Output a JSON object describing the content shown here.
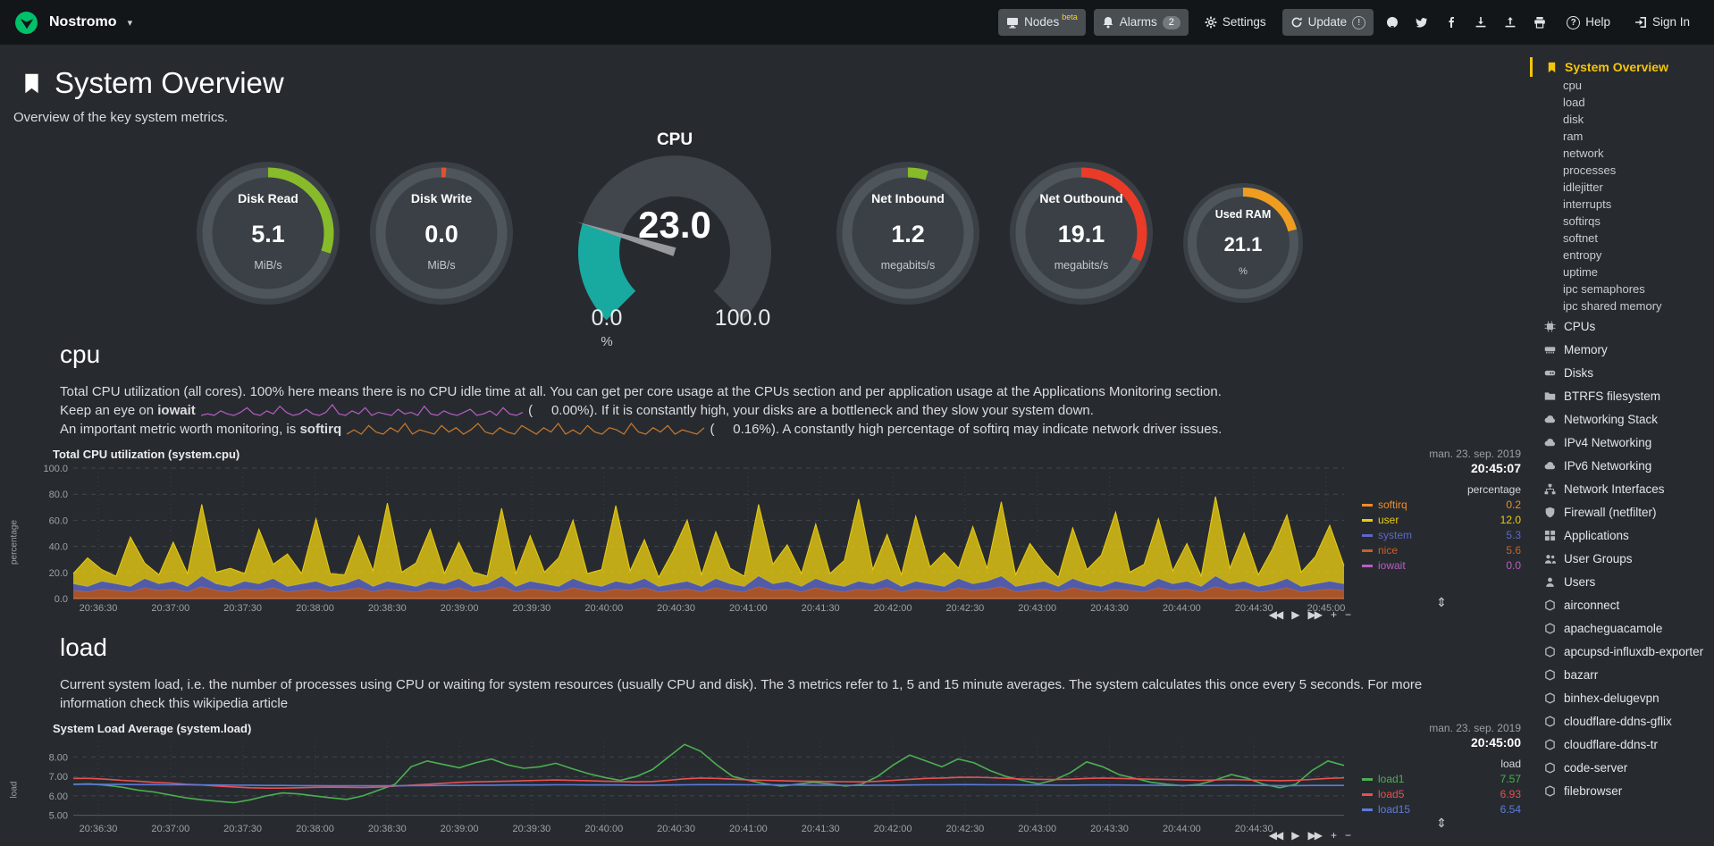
{
  "colors": {
    "accent": "#F5C40C",
    "bg": "#272b30",
    "navbar": "#131619"
  },
  "topbar": {
    "host": "Nostromo",
    "items": [
      {
        "name": "nodes-button",
        "icon": "monitor",
        "label": "Nodes",
        "sup": "beta",
        "pill": true
      },
      {
        "name": "alarms-button",
        "icon": "bell",
        "label": "Alarms",
        "badge": "2",
        "badge_style": "pill",
        "pill": true
      },
      {
        "name": "settings-button",
        "icon": "gear",
        "label": "Settings",
        "pill": false
      },
      {
        "name": "update-button",
        "icon": "update",
        "label": "Update",
        "badge": "!",
        "badge_style": "circle",
        "pill": true
      },
      {
        "name": "github-button",
        "icon": "github"
      },
      {
        "name": "twitter-button",
        "icon": "twitter"
      },
      {
        "name": "facebook-button",
        "icon": "facebook"
      },
      {
        "name": "import-snapshot-button",
        "icon": "download"
      },
      {
        "name": "export-snapshot-button",
        "icon": "upload"
      },
      {
        "name": "print-button",
        "icon": "print"
      },
      {
        "name": "help-button",
        "icon": "help",
        "label": "Help"
      },
      {
        "name": "signin-button",
        "icon": "signin",
        "label": "Sign In"
      }
    ]
  },
  "page": {
    "title": "System Overview",
    "subtitle": "Overview of the key system metrics."
  },
  "gauges": {
    "items": [
      {
        "type": "easy",
        "id": "disk-read",
        "title": "Disk Read",
        "value": "5.1",
        "unit": "MiB/s",
        "color": "#87BB2A",
        "fraction": 0.3,
        "size": 166
      },
      {
        "type": "easy",
        "id": "disk-write",
        "title": "Disk Write",
        "value": "0.0",
        "unit": "MiB/s",
        "color": "#E4502E",
        "fraction": 0.012,
        "size": 166
      },
      {
        "type": "meter",
        "id": "cpu",
        "title": "CPU",
        "value": "23.0",
        "unit": "%",
        "min_label": "0.0",
        "max_label": "100.0",
        "fraction": 0.23,
        "color": "#18A9A0"
      },
      {
        "type": "easy",
        "id": "net-inbound",
        "title": "Net Inbound",
        "value": "1.2",
        "unit": "megabits/s",
        "color": "#87BB2A",
        "fraction": 0.05,
        "size": 166
      },
      {
        "type": "easy",
        "id": "net-outbound",
        "title": "Net Outbound",
        "value": "19.1",
        "unit": "megabits/s",
        "color": "#EA3B28",
        "fraction": 0.32,
        "size": 166
      },
      {
        "type": "easy",
        "id": "used-ram",
        "title": "Used RAM",
        "value": "21.1",
        "unit": "%",
        "color": "#EE9D20",
        "fraction": 0.21,
        "size": 140
      }
    ]
  },
  "cpu_section": {
    "heading": "cpu",
    "desc1": "Total CPU utilization (all cores). 100% here means there is no CPU idle time at all. You can get per core usage at the CPUs section and per application usage at the Applications Monitoring section.",
    "iowait": {
      "prefix": "Keep an eye on",
      "term": "iowait",
      "value": "(     0.00%).",
      "rest": "If it is constantly high, your disks are a bottleneck and they slow your system down.",
      "spark_color": "#B65EC2",
      "spark": [
        0,
        0.1,
        0,
        0.3,
        0.1,
        0,
        0.2,
        0.5,
        0.1,
        0,
        0.3,
        0.1,
        0.6,
        0.2,
        0,
        0.1,
        0.4,
        0.1,
        0,
        0.2,
        0.7,
        0.1,
        0,
        0.3,
        0.1,
        0.5,
        0,
        0.2,
        0.1,
        0,
        0.4,
        0.1,
        0.2,
        0,
        0.6,
        0.1,
        0,
        0.3,
        0.1,
        0,
        0.2,
        0.4,
        0,
        0.1,
        0.3,
        0,
        0.5,
        0.1,
        0,
        0.2
      ]
    },
    "softirq": {
      "prefix": "An important metric worth monitoring, is",
      "term": "softirq",
      "value": "(     0.16%).",
      "rest": "A constantly high percentage of softirq may indicate network driver issues.",
      "spark_color": "#C87A2E",
      "spark": [
        0.2,
        0.4,
        0.2,
        0.6,
        0.3,
        0.2,
        0.5,
        0.3,
        0.7,
        0.2,
        0.4,
        0.3,
        0.2,
        0.6,
        0.3,
        0.5,
        0.2,
        0.4,
        0.7,
        0.3,
        0.2,
        0.5,
        0.3,
        0.2,
        0.6,
        0.4,
        0.2,
        0.5,
        0.3,
        0.7,
        0.2,
        0.4,
        0.2,
        0.6,
        0.3,
        0.2,
        0.5,
        0.4,
        0.2,
        0.7,
        0.3,
        0.2,
        0.5,
        0.3,
        0.6,
        0.2,
        0.4,
        0.3,
        0.2,
        0.5
      ]
    }
  },
  "load_section": {
    "heading": "load",
    "desc": "Current system load, i.e. the number of processes using CPU or waiting for system resources (usually CPU and disk). The 3 metrics refer to 1, 5 and 15 minute averages. The system calculates this once every 5 seconds. For more information check this wikipedia article"
  },
  "chart_ui": {
    "nav_icons": [
      {
        "name": "pan-backward",
        "glyph": "◀◀"
      },
      {
        "name": "play",
        "glyph": "▶"
      },
      {
        "name": "pan-forward",
        "glyph": "▶▶"
      },
      {
        "name": "zoom-in",
        "glyph": "+"
      },
      {
        "name": "zoom-out",
        "glyph": "−"
      }
    ],
    "resize_glyph": "⇕"
  },
  "chart_data": [
    {
      "type": "area",
      "stacked": true,
      "title": "Total CPU utilization (system.cpu)",
      "ylabel": "percentage",
      "unit_header": "percentage",
      "timestamp": {
        "date": "man. 23. sep. 2019",
        "time": "20:45:07"
      },
      "ylim": [
        0,
        100
      ],
      "yticks": [
        0,
        20,
        40,
        60,
        80,
        100
      ],
      "ytick_labels": [
        "0.0",
        "20.0",
        "40.0",
        "60.0",
        "80.0",
        "100.0"
      ],
      "x_slot_count": 18,
      "x_tick_labels": [
        "20:36:30",
        "20:37:00",
        "20:37:30",
        "20:38:00",
        "20:38:30",
        "20:39:00",
        "20:39:30",
        "20:40:00",
        "20:40:30",
        "20:41:00",
        "20:41:30",
        "20:42:00",
        "20:42:30",
        "20:43:00",
        "20:43:30",
        "20:44:00",
        "20:44:30",
        "20:45:00"
      ],
      "stack_order": [
        "iowait",
        "softirq",
        "nice",
        "system",
        "user"
      ],
      "series": [
        {
          "name": "softirq",
          "color": "#ED8C2B",
          "legend_value": "0.2",
          "constant": 0.2
        },
        {
          "name": "user",
          "color": "#E9CB12",
          "legend_value": "12.0",
          "values": [
            8,
            22,
            9,
            6,
            38,
            12,
            7,
            30,
            10,
            55,
            9,
            14,
            6,
            42,
            11,
            25,
            8,
            48,
            10,
            7,
            33,
            12,
            60,
            9,
            18,
            40,
            8,
            28,
            11,
            6,
            52,
            10,
            35,
            9,
            22,
            45,
            8,
            13,
            58,
            10,
            30,
            7,
            25,
            47,
            9,
            36,
            12,
            8,
            55,
            15,
            28,
            10,
            42,
            8,
            20,
            63,
            11,
            34,
            9,
            50,
            13,
            26,
            8,
            44,
            10,
            57,
            9,
            31,
            14,
            7,
            39,
            11,
            24,
            53,
            9,
            17,
            46,
            10,
            29,
            8,
            61,
            12,
            37,
            9,
            27,
            49,
            11,
            21,
            43,
            14
          ]
        },
        {
          "name": "system",
          "color": "#5C68C6",
          "legend_value": "5.3",
          "values": [
            5,
            4,
            6,
            5,
            4,
            7,
            5,
            6,
            4,
            8,
            5,
            4,
            6,
            5,
            7,
            4,
            5,
            6,
            4,
            5,
            7,
            4,
            6,
            5,
            4,
            6,
            5,
            7,
            4,
            5,
            8,
            4,
            6,
            5,
            4,
            7,
            5,
            4,
            6,
            5,
            7,
            4,
            5,
            6,
            4,
            7,
            5,
            4,
            8,
            5,
            6,
            4,
            7,
            5,
            4,
            6,
            5,
            7,
            4,
            6,
            5,
            4,
            7,
            5,
            6,
            8,
            4,
            5,
            6,
            4,
            7,
            5,
            4,
            6,
            5,
            4,
            7,
            5,
            6,
            4,
            8,
            5,
            6,
            4,
            5,
            7,
            4,
            5,
            6,
            5
          ]
        },
        {
          "name": "nice",
          "color": "#C95F2B",
          "legend_value": "5.6",
          "values": [
            6,
            5,
            7,
            6,
            5,
            8,
            6,
            7,
            5,
            9,
            6,
            5,
            7,
            6,
            8,
            5,
            6,
            7,
            5,
            6,
            8,
            5,
            7,
            6,
            5,
            7,
            6,
            8,
            5,
            6,
            9,
            5,
            7,
            6,
            5,
            8,
            6,
            5,
            7,
            6,
            8,
            5,
            6,
            7,
            5,
            8,
            6,
            5,
            9,
            6,
            7,
            5,
            8,
            6,
            5,
            7,
            6,
            8,
            5,
            7,
            6,
            5,
            8,
            6,
            7,
            9,
            5,
            6,
            7,
            5,
            8,
            6,
            5,
            7,
            6,
            5,
            8,
            6,
            7,
            5,
            9,
            6,
            7,
            5,
            6,
            8,
            5,
            6,
            7,
            6
          ]
        },
        {
          "name": "iowait",
          "color": "#BA5EC2",
          "legend_value": "0.0",
          "constant": 0
        }
      ]
    },
    {
      "type": "line",
      "stacked": false,
      "title": "System Load Average (system.load)",
      "ylabel": "load",
      "unit_header": "load",
      "timestamp": {
        "date": "man. 23. sep. 2019",
        "time": "20:45:00"
      },
      "ylim": [
        4.8,
        8.8
      ],
      "yticks": [
        5,
        6,
        7,
        8
      ],
      "ytick_labels": [
        "5.00",
        "6.00",
        "7.00",
        "8.00"
      ],
      "x_slot_count": 18,
      "x_tick_labels": [
        "20:36:30",
        "20:37:00",
        "20:37:30",
        "20:38:00",
        "20:38:30",
        "20:39:00",
        "20:39:30",
        "20:40:00",
        "20:40:30",
        "20:41:00",
        "20:41:30",
        "20:42:00",
        "20:42:30",
        "20:43:00",
        "20:43:30",
        "20:44:00",
        "20:44:30"
      ],
      "series": [
        {
          "name": "load1",
          "color": "#4CAF50",
          "legend_value": "7.57",
          "values": [
            6.6,
            6.62,
            6.55,
            6.45,
            6.3,
            6.2,
            6.05,
            5.9,
            5.8,
            5.72,
            5.65,
            5.8,
            6.0,
            6.15,
            6.1,
            6.0,
            5.9,
            5.82,
            6.0,
            6.3,
            6.6,
            7.5,
            7.8,
            7.62,
            7.45,
            7.7,
            7.9,
            7.6,
            7.42,
            7.5,
            7.68,
            7.4,
            7.15,
            6.95,
            6.8,
            7.0,
            7.35,
            8.0,
            8.65,
            8.3,
            7.6,
            7.0,
            6.8,
            6.62,
            6.5,
            6.6,
            6.7,
            6.62,
            6.5,
            6.6,
            7.0,
            7.6,
            8.1,
            7.8,
            7.5,
            7.9,
            7.7,
            7.3,
            7.0,
            6.8,
            6.62,
            6.82,
            7.2,
            7.75,
            7.5,
            7.1,
            6.9,
            6.7,
            6.6,
            6.52,
            6.6,
            6.82,
            7.1,
            6.9,
            6.6,
            6.42,
            6.6,
            7.3,
            7.8,
            7.57
          ]
        },
        {
          "name": "load5",
          "color": "#E85050",
          "legend_value": "6.93",
          "values": [
            6.9,
            6.9,
            6.86,
            6.8,
            6.76,
            6.7,
            6.66,
            6.6,
            6.56,
            6.5,
            6.46,
            6.42,
            6.4,
            6.4,
            6.42,
            6.44,
            6.45,
            6.44,
            6.43,
            6.45,
            6.5,
            6.55,
            6.6,
            6.65,
            6.7,
            6.72,
            6.74,
            6.76,
            6.78,
            6.8,
            6.82,
            6.8,
            6.78,
            6.76,
            6.74,
            6.72,
            6.74,
            6.8,
            6.88,
            6.92,
            6.9,
            6.86,
            6.82,
            6.8,
            6.78,
            6.76,
            6.75,
            6.74,
            6.73,
            6.72,
            6.75,
            6.8,
            6.85,
            6.9,
            6.92,
            6.95,
            6.96,
            6.94,
            6.9,
            6.87,
            6.85,
            6.84,
            6.86,
            6.9,
            6.92,
            6.9,
            6.88,
            6.86,
            6.84,
            6.82,
            6.8,
            6.82,
            6.84,
            6.82,
            6.8,
            6.78,
            6.8,
            6.85,
            6.9,
            6.93
          ]
        },
        {
          "name": "load15",
          "color": "#5C7BD9",
          "legend_value": "6.54",
          "values": [
            6.6,
            6.6,
            6.59,
            6.59,
            6.58,
            6.58,
            6.57,
            6.57,
            6.56,
            6.56,
            6.55,
            6.55,
            6.54,
            6.54,
            6.53,
            6.53,
            6.52,
            6.52,
            6.52,
            6.52,
            6.52,
            6.53,
            6.53,
            6.54,
            6.54,
            6.55,
            6.55,
            6.56,
            6.56,
            6.56,
            6.57,
            6.57,
            6.56,
            6.56,
            6.56,
            6.55,
            6.55,
            6.56,
            6.57,
            6.58,
            6.58,
            6.58,
            6.57,
            6.57,
            6.56,
            6.56,
            6.55,
            6.55,
            6.54,
            6.54,
            6.55,
            6.55,
            6.56,
            6.57,
            6.57,
            6.58,
            6.58,
            6.57,
            6.57,
            6.56,
            6.56,
            6.55,
            6.55,
            6.56,
            6.56,
            6.56,
            6.55,
            6.55,
            6.54,
            6.54,
            6.54,
            6.54,
            6.55,
            6.54,
            6.54,
            6.53,
            6.53,
            6.54,
            6.54,
            6.54
          ]
        }
      ]
    }
  ],
  "sidebar": {
    "active": {
      "label": "System Overview",
      "icon": "bookmark"
    },
    "sub_items": [
      "cpu",
      "load",
      "disk",
      "ram",
      "network",
      "processes",
      "idlejitter",
      "interrupts",
      "softirqs",
      "softnet",
      "entropy",
      "uptime",
      "ipc semaphores",
      "ipc shared memory"
    ],
    "items": [
      {
        "label": "CPUs",
        "icon": "microchip"
      },
      {
        "label": "Memory",
        "icon": "memory"
      },
      {
        "label": "Disks",
        "icon": "hdd"
      },
      {
        "label": "BTRFS filesystem",
        "icon": "folder"
      },
      {
        "label": "Networking Stack",
        "icon": "cloud"
      },
      {
        "label": "IPv4 Networking",
        "icon": "cloud"
      },
      {
        "label": "IPv6 Networking",
        "icon": "cloud"
      },
      {
        "label": "Network Interfaces",
        "icon": "sitemap"
      },
      {
        "label": "Firewall (netfilter)",
        "icon": "shield"
      },
      {
        "label": "Applications",
        "icon": "apps"
      },
      {
        "label": "User Groups",
        "icon": "users"
      },
      {
        "label": "Users",
        "icon": "user"
      },
      {
        "label": "airconnect",
        "icon": "cube"
      },
      {
        "label": "apacheguacamole",
        "icon": "cube"
      },
      {
        "label": "apcupsd-influxdb-exporter",
        "icon": "cube"
      },
      {
        "label": "bazarr",
        "icon": "cube"
      },
      {
        "label": "binhex-delugevpn",
        "icon": "cube"
      },
      {
        "label": "cloudflare-ddns-gflix",
        "icon": "cube"
      },
      {
        "label": "cloudflare-ddns-tr",
        "icon": "cube"
      },
      {
        "label": "code-server",
        "icon": "cube"
      },
      {
        "label": "filebrowser",
        "icon": "cube"
      }
    ]
  }
}
